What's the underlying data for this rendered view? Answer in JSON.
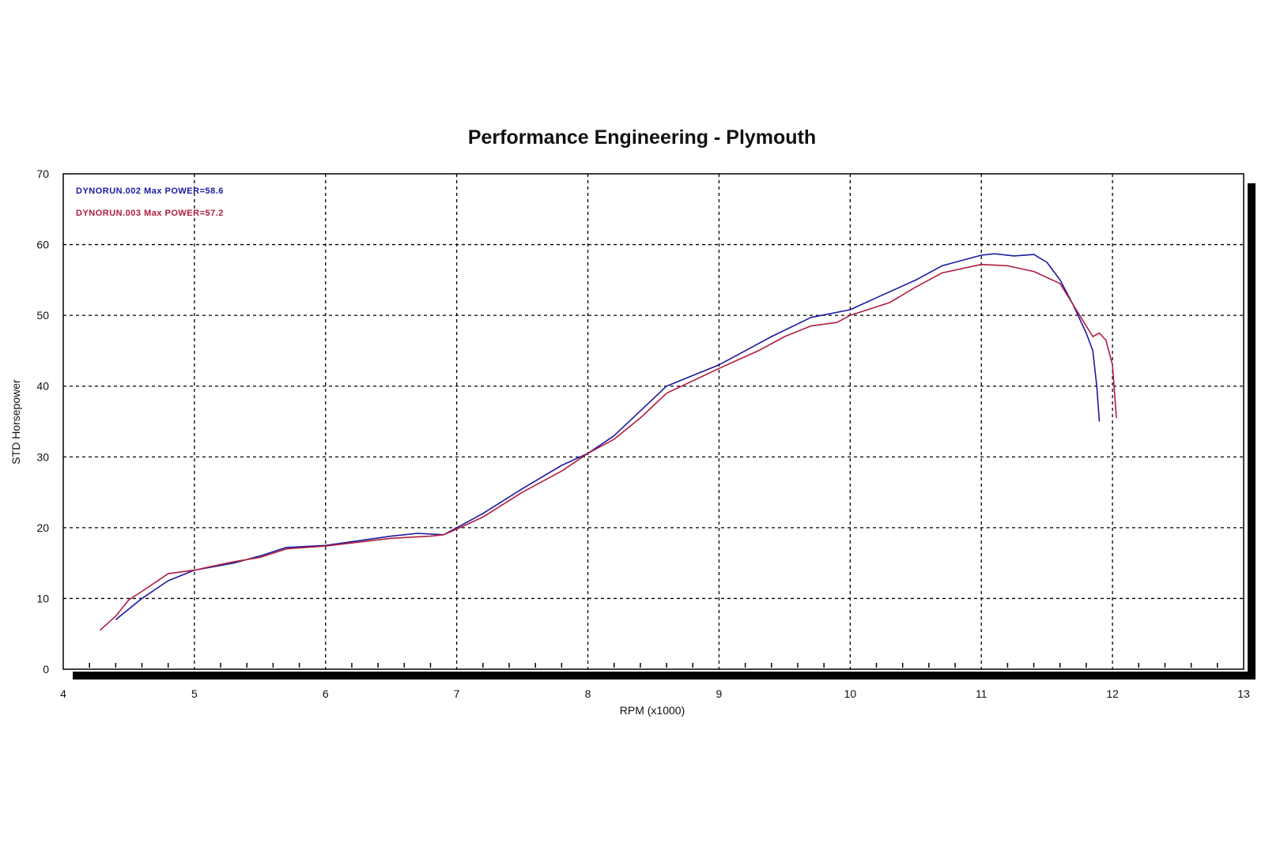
{
  "chart_data": {
    "type": "line",
    "title": "Performance Engineering - Plymouth",
    "xlabel": "RPM (x1000)",
    "ylabel": "STD Horsepower",
    "xlim": [
      4,
      13
    ],
    "ylim": [
      0,
      70
    ],
    "x_ticks": [
      "4",
      "5",
      "6",
      "7",
      "8",
      "9",
      "10",
      "11",
      "12",
      "13"
    ],
    "y_ticks": [
      "0",
      "10",
      "20",
      "30",
      "40",
      "50",
      "60",
      "70"
    ],
    "grid": true,
    "grid_style": "dashed",
    "legend_position": "top-left",
    "colors": {
      "run002": "#1a1aa0",
      "run003": "#b01c3c"
    },
    "legend": [
      "DYNORUN.002 Max POWER=58.6",
      "DYNORUN.003 Max POWER=57.2"
    ],
    "series": [
      {
        "name": "DYNORUN.002",
        "color": "#1a1aa0",
        "points": [
          [
            4.4,
            7.0
          ],
          [
            4.5,
            8.5
          ],
          [
            4.6,
            10.0
          ],
          [
            4.8,
            12.5
          ],
          [
            5.0,
            14.0
          ],
          [
            5.3,
            15.0
          ],
          [
            5.5,
            16.0
          ],
          [
            5.7,
            17.2
          ],
          [
            6.0,
            17.5
          ],
          [
            6.5,
            18.8
          ],
          [
            6.7,
            19.2
          ],
          [
            6.9,
            19.0
          ],
          [
            7.0,
            20.0
          ],
          [
            7.2,
            22.0
          ],
          [
            7.5,
            25.5
          ],
          [
            7.8,
            28.8
          ],
          [
            8.0,
            30.5
          ],
          [
            8.2,
            33.0
          ],
          [
            8.4,
            36.5
          ],
          [
            8.6,
            40.0
          ],
          [
            9.0,
            43.0
          ],
          [
            9.2,
            45.0
          ],
          [
            9.4,
            47.0
          ],
          [
            9.7,
            49.7
          ],
          [
            10.0,
            50.8
          ],
          [
            10.2,
            52.5
          ],
          [
            10.5,
            55.0
          ],
          [
            10.7,
            57.0
          ],
          [
            11.0,
            58.5
          ],
          [
            11.1,
            58.7
          ],
          [
            11.25,
            58.4
          ],
          [
            11.4,
            58.6
          ],
          [
            11.5,
            57.5
          ],
          [
            11.6,
            55.0
          ],
          [
            11.7,
            51.5
          ],
          [
            11.8,
            47.5
          ],
          [
            11.85,
            45.0
          ],
          [
            11.88,
            40.0
          ],
          [
            11.9,
            35.0
          ]
        ]
      },
      {
        "name": "DYNORUN.003",
        "color": "#b01c3c",
        "points": [
          [
            4.28,
            5.5
          ],
          [
            4.4,
            7.5
          ],
          [
            4.5,
            9.8
          ],
          [
            4.6,
            11.0
          ],
          [
            4.8,
            13.5
          ],
          [
            5.0,
            14.0
          ],
          [
            5.3,
            15.2
          ],
          [
            5.5,
            15.8
          ],
          [
            5.7,
            17.0
          ],
          [
            6.0,
            17.4
          ],
          [
            6.5,
            18.5
          ],
          [
            6.8,
            18.8
          ],
          [
            6.9,
            19.0
          ],
          [
            7.0,
            19.8
          ],
          [
            7.2,
            21.5
          ],
          [
            7.5,
            25.0
          ],
          [
            7.8,
            28.0
          ],
          [
            8.0,
            30.5
          ],
          [
            8.2,
            32.5
          ],
          [
            8.4,
            35.5
          ],
          [
            8.6,
            39.0
          ],
          [
            9.0,
            42.5
          ],
          [
            9.3,
            45.0
          ],
          [
            9.5,
            47.0
          ],
          [
            9.7,
            48.5
          ],
          [
            9.9,
            49.0
          ],
          [
            10.0,
            50.0
          ],
          [
            10.3,
            51.8
          ],
          [
            10.5,
            54.0
          ],
          [
            10.7,
            56.0
          ],
          [
            11.0,
            57.2
          ],
          [
            11.2,
            57.0
          ],
          [
            11.4,
            56.2
          ],
          [
            11.6,
            54.5
          ],
          [
            11.75,
            50.0
          ],
          [
            11.85,
            47.0
          ],
          [
            11.9,
            47.5
          ],
          [
            11.95,
            46.5
          ],
          [
            12.0,
            43.0
          ],
          [
            12.02,
            38.0
          ],
          [
            12.03,
            35.5
          ]
        ]
      }
    ]
  }
}
